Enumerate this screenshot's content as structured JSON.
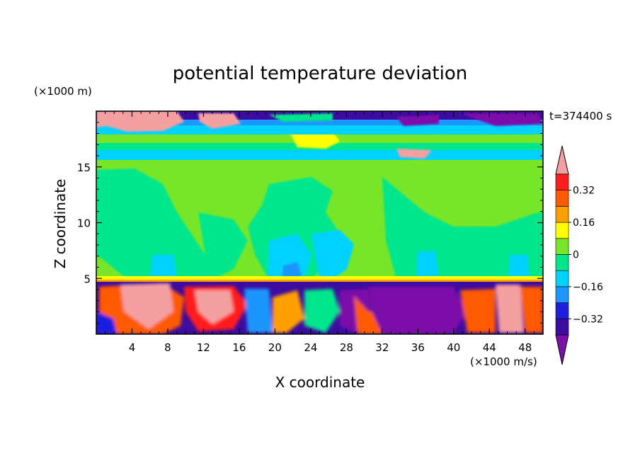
{
  "chart_data": {
    "type": "heatmap",
    "title": "potential temperature deviation",
    "xlabel": "X coordinate",
    "ylabel": "Z coordinate",
    "x_unit": "(×1000 m/s)",
    "y_unit": "(×1000 m)",
    "time_label": "t=374400 s",
    "xlim": [
      0,
      50
    ],
    "ylim": [
      0,
      20
    ],
    "x_ticks": [
      4,
      8,
      12,
      16,
      20,
      24,
      28,
      32,
      36,
      40,
      44,
      48
    ],
    "y_ticks": [
      5,
      10,
      15
    ],
    "colorbar": {
      "levels": [
        -0.4,
        -0.32,
        -0.24,
        -0.16,
        -0.08,
        0,
        0.08,
        0.16,
        0.24,
        0.32,
        0.4
      ],
      "labels": [
        "0.32",
        "0.16",
        "0",
        "−0.16",
        "−0.32"
      ],
      "label_values": [
        0.32,
        0.16,
        0,
        -0.16,
        -0.32
      ],
      "colors": [
        "#7c0fa8",
        "#3c0ca0",
        "#1e1ee0",
        "#1e96ff",
        "#00d2ff",
        "#00e68c",
        "#78e628",
        "#ffff00",
        "#ffa000",
        "#ff5a00",
        "#ff1e1e",
        "#f4a0a0"
      ],
      "extend": "both"
    }
  }
}
